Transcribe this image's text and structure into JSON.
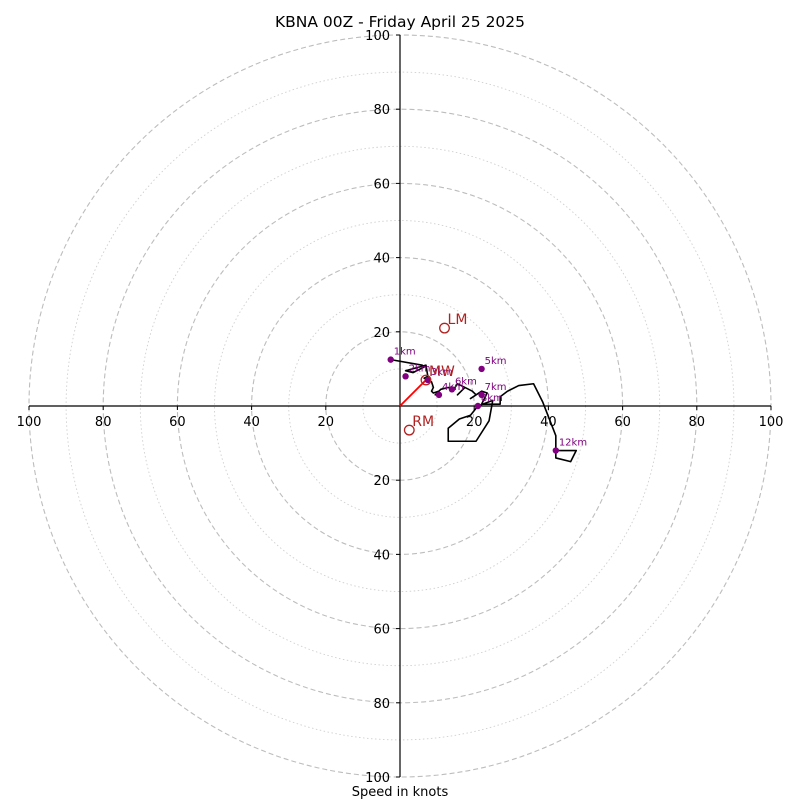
{
  "chart_data": {
    "type": "scatter",
    "title": "KBNA 00Z - Friday April 25 2025",
    "xlabel": "Speed in knots",
    "ylabel": "",
    "xlim": [
      -100,
      100
    ],
    "ylim": [
      -100,
      100
    ],
    "major_rings": [
      20,
      40,
      60,
      80,
      100
    ],
    "minor_rings": [
      10,
      30,
      50,
      70,
      90
    ],
    "x_tick_labels": [
      "100",
      "80",
      "60",
      "40",
      "20",
      "20",
      "40",
      "60",
      "80",
      "100"
    ],
    "x_ticks": [
      -100,
      -80,
      -60,
      -40,
      -20,
      20,
      40,
      60,
      80,
      100
    ],
    "y_tick_labels": [
      "100",
      "80",
      "60",
      "40",
      "20",
      "20",
      "40",
      "60",
      "80",
      "100"
    ],
    "y_ticks": [
      100,
      80,
      60,
      40,
      20,
      -20,
      -40,
      -60,
      -80,
      -100
    ],
    "grid": true,
    "hodograph_trace": [
      [
        -2.5,
        12.5
      ],
      [
        6,
        11
      ],
      [
        6.5,
        10.5
      ],
      [
        3.5,
        9
      ],
      [
        1.5,
        9.5
      ],
      [
        7,
        11
      ],
      [
        7.5,
        8
      ],
      [
        6.5,
        7.5
      ],
      [
        8.5,
        6.5
      ],
      [
        9,
        5
      ],
      [
        8.5,
        4
      ],
      [
        9,
        3.5
      ],
      [
        10.5,
        4
      ],
      [
        9.5,
        3
      ],
      [
        11,
        4.5
      ],
      [
        13,
        5
      ],
      [
        14.5,
        4.5
      ],
      [
        15.5,
        6
      ],
      [
        17.5,
        5
      ],
      [
        15.5,
        3
      ],
      [
        17.5,
        5
      ],
      [
        19.5,
        4
      ],
      [
        20.5,
        3
      ],
      [
        19,
        2
      ],
      [
        22,
        4
      ],
      [
        23.5,
        3.5
      ],
      [
        22,
        0.5
      ],
      [
        27,
        0.5
      ],
      [
        27,
        2.5
      ],
      [
        29,
        4
      ],
      [
        32,
        5.5
      ],
      [
        36,
        6
      ],
      [
        38.5,
        1
      ],
      [
        42,
        -8
      ],
      [
        42,
        -14
      ],
      [
        46,
        -15
      ],
      [
        47.5,
        -12
      ],
      [
        42,
        -12
      ]
    ],
    "trace_fragment": [
      [
        21,
        0
      ],
      [
        25,
        1.5
      ],
      [
        24,
        -4
      ],
      [
        20.5,
        -9.5
      ],
      [
        13,
        -9.5
      ],
      [
        13,
        -6
      ],
      [
        16,
        -3.5
      ],
      [
        19,
        -2.5
      ],
      [
        21,
        0
      ]
    ],
    "height_markers": [
      {
        "label": "1km",
        "u": -2.5,
        "v": 12.5
      },
      {
        "label": "2km",
        "u": 1.5,
        "v": 8
      },
      {
        "label": "3km",
        "u": 7.5,
        "v": 7
      },
      {
        "label": "4km",
        "u": 10.5,
        "v": 3
      },
      {
        "label": "5km",
        "u": 22,
        "v": 10
      },
      {
        "label": "6km",
        "u": 14,
        "v": 4.5
      },
      {
        "label": "7km",
        "u": 22,
        "v": 3
      },
      {
        "label": "8km",
        "u": 21,
        "v": 0
      },
      {
        "label": "12km",
        "u": 42,
        "v": -12
      }
    ],
    "storm_motion": [
      {
        "label": "LM",
        "u": 12,
        "v": 21
      },
      {
        "label": "MW",
        "u": 7,
        "v": 7
      },
      {
        "label": "RM",
        "u": 2.5,
        "v": -6.5
      }
    ],
    "mean_wind_vector": {
      "u": 7,
      "v": 7
    },
    "colors": {
      "trace": "#000000",
      "height_marker": "#800080",
      "storm_motion": "#b22222",
      "mean_wind_vector": "#ff0000",
      "major_ring": "#bdbdbd",
      "minor_ring": "#cfcfcf"
    }
  }
}
